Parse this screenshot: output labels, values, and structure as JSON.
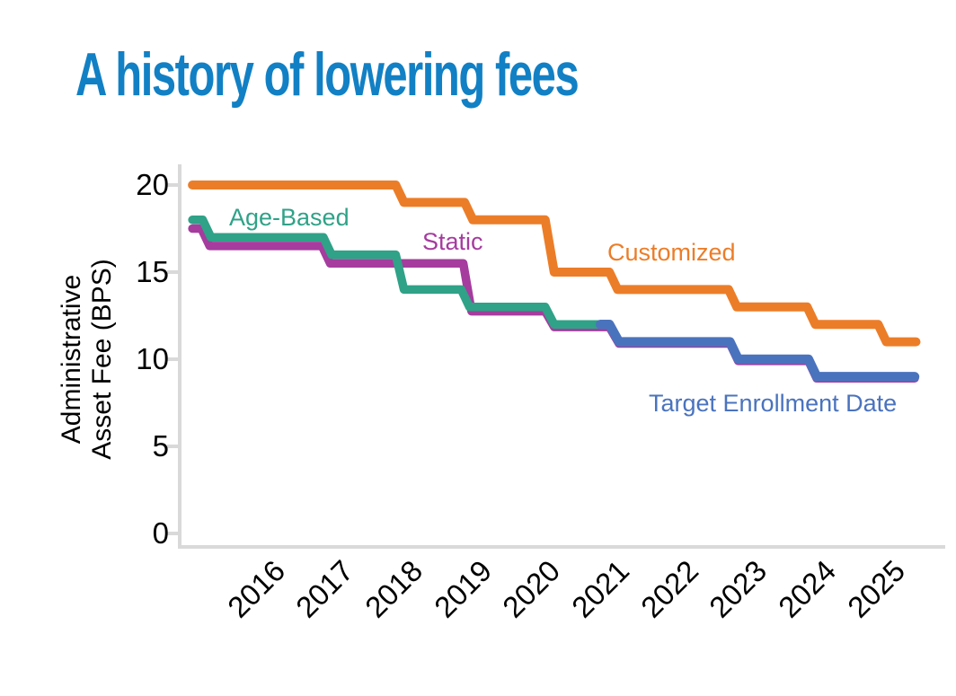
{
  "title": {
    "text": "A history of lowering fees",
    "color": "#1280C4"
  },
  "colors": {
    "axis": "#D9D9D9",
    "tick_text": "#000000"
  },
  "chart_data": {
    "type": "line",
    "line_style": "step",
    "title": "A history of lowering fees",
    "xlabel": "",
    "ylabel": "Administrative Asset Fee (BPS)",
    "ylabel_lines": [
      "Administrative",
      "Asset Fee (BPS)"
    ],
    "yticks": [
      0,
      5,
      10,
      15,
      20
    ],
    "xticks": [
      2016,
      2017,
      2018,
      2019,
      2020,
      2021,
      2022,
      2023,
      2024,
      2025
    ],
    "ylim": [
      0,
      20
    ],
    "xlim": [
      2015,
      2025.7
    ],
    "grid": false,
    "legend_position": "inline-labels",
    "series": [
      {
        "name": "Static",
        "color": "#A53C9E",
        "points": [
          [
            2015.05,
            17.5
          ],
          [
            2015.18,
            17.5
          ],
          [
            2015.3,
            16.5
          ],
          [
            2016.93,
            16.5
          ],
          [
            2017.05,
            15.5
          ],
          [
            2018.98,
            15.5
          ],
          [
            2019.1,
            12.75
          ],
          [
            2020.17,
            12.75
          ],
          [
            2020.3,
            11.85
          ],
          [
            2021.1,
            11.85
          ],
          [
            2021.24,
            10.9
          ],
          [
            2022.85,
            10.9
          ],
          [
            2022.97,
            9.9
          ],
          [
            2023.99,
            9.9
          ],
          [
            2024.11,
            8.9
          ],
          [
            2025.53,
            8.9
          ]
        ]
      },
      {
        "name": "Age-Based",
        "color": "#2FA287",
        "points": [
          [
            2015.05,
            18
          ],
          [
            2015.2,
            18
          ],
          [
            2015.32,
            17
          ],
          [
            2016.95,
            17
          ],
          [
            2017.07,
            16
          ],
          [
            2018.0,
            16
          ],
          [
            2018.12,
            14
          ],
          [
            2018.95,
            14
          ],
          [
            2019.07,
            13
          ],
          [
            2020.17,
            13
          ],
          [
            2020.3,
            12
          ],
          [
            2021.08,
            12
          ]
        ]
      },
      {
        "name": "Customized",
        "color": "#EC7D28",
        "points": [
          [
            2015.05,
            20
          ],
          [
            2018.0,
            20
          ],
          [
            2018.12,
            19
          ],
          [
            2019.0,
            19
          ],
          [
            2019.12,
            18
          ],
          [
            2020.17,
            18
          ],
          [
            2020.3,
            15
          ],
          [
            2021.1,
            15
          ],
          [
            2021.22,
            14
          ],
          [
            2022.83,
            14
          ],
          [
            2022.95,
            13
          ],
          [
            2023.97,
            13
          ],
          [
            2024.09,
            12
          ],
          [
            2025.0,
            12
          ],
          [
            2025.12,
            11
          ],
          [
            2025.55,
            11
          ]
        ]
      },
      {
        "name": "Target Enrollment Date",
        "color": "#4A73BE",
        "points": [
          [
            2020.97,
            12
          ],
          [
            2021.1,
            12
          ],
          [
            2021.24,
            11
          ],
          [
            2022.85,
            11
          ],
          [
            2022.97,
            10
          ],
          [
            2023.99,
            10
          ],
          [
            2024.11,
            9
          ],
          [
            2025.53,
            9
          ]
        ]
      }
    ]
  }
}
